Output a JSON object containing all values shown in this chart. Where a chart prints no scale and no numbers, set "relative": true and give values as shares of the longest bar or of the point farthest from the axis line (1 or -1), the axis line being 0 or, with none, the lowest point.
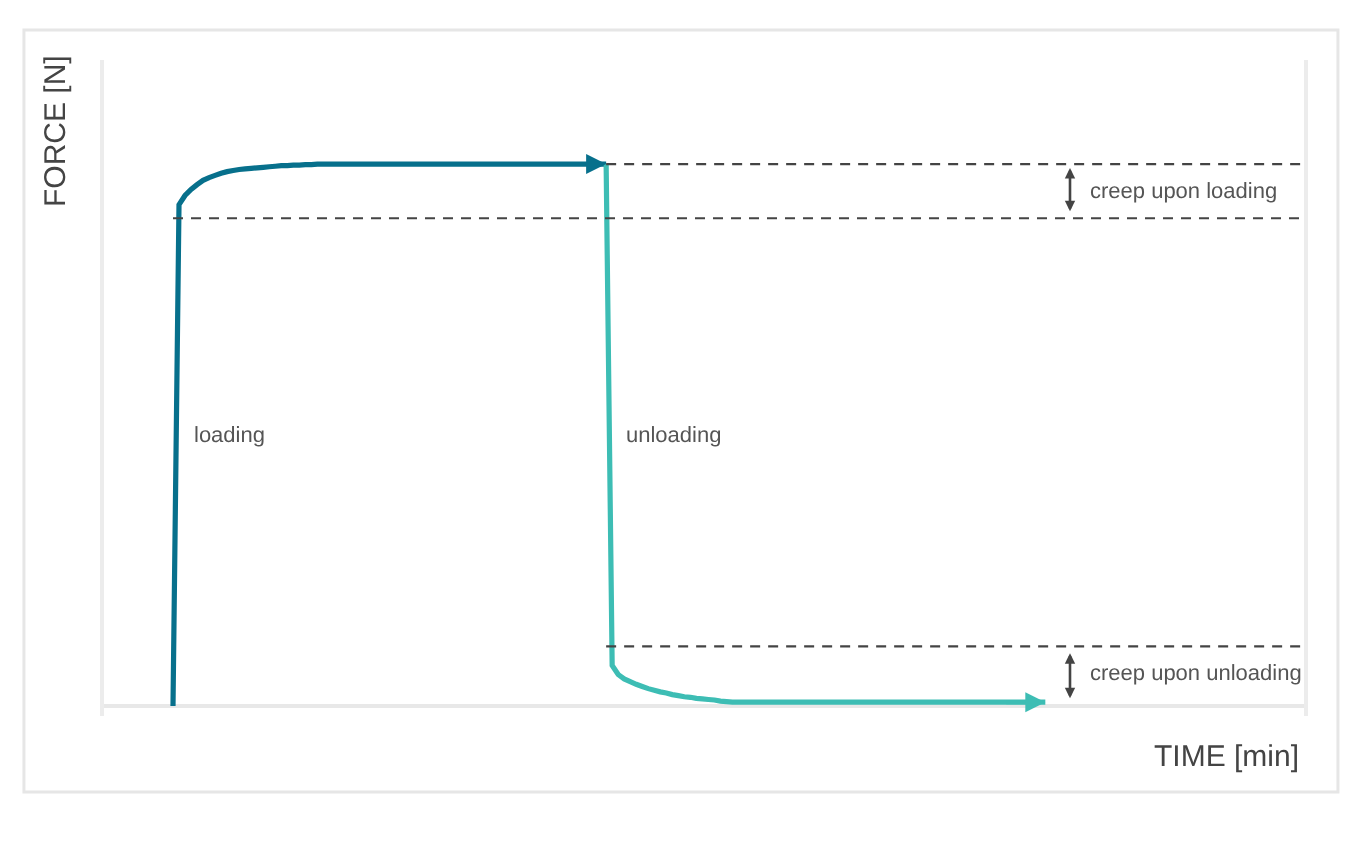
{
  "chart_data": {
    "type": "line",
    "relative": true,
    "xlabel": "TIME [min]",
    "ylabel": "FORCE [N]",
    "legend": false,
    "marker": "none",
    "categories": [
      null,
      null,
      null,
      null,
      null,
      null,
      null,
      null,
      null,
      null,
      null,
      null,
      null,
      null,
      null,
      null,
      null,
      null,
      null,
      null,
      null,
      null,
      null,
      null,
      null,
      null,
      null,
      null,
      null,
      null,
      null,
      null,
      null,
      null,
      null,
      null,
      null,
      null,
      null,
      null,
      null,
      null,
      null,
      null,
      null,
      null,
      null,
      null,
      null,
      null,
      null,
      null,
      null,
      null,
      null,
      null,
      null,
      null,
      null,
      null,
      null,
      null,
      null,
      null,
      null,
      null,
      null,
      null,
      null,
      null,
      null,
      null,
      null,
      null,
      null,
      null,
      null,
      null,
      null,
      null,
      null,
      null,
      null,
      null,
      null,
      null,
      null,
      null,
      null,
      null,
      null,
      null,
      null,
      null,
      null,
      null,
      null,
      null,
      null,
      null,
      null,
      null,
      null,
      null,
      null,
      null,
      null,
      null,
      null,
      null,
      null,
      null,
      null,
      null,
      null,
      null,
      null,
      null,
      null,
      null,
      null,
      null,
      null,
      null,
      null,
      null,
      null,
      null,
      null,
      null,
      null,
      null,
      null,
      null,
      null,
      null,
      null,
      null,
      null,
      null,
      null,
      null,
      null,
      null,
      null,
      null,
      null,
      null,
      null,
      null,
      null,
      null,
      null,
      null,
      null,
      null,
      null,
      null,
      null,
      null,
      null,
      null,
      null,
      null,
      null,
      null,
      null,
      null,
      null,
      null,
      null,
      null,
      null,
      null,
      null,
      null,
      null,
      null,
      null,
      null,
      null,
      null,
      null,
      null,
      null,
      null,
      null,
      null,
      null
    ],
    "series": [
      {
        "name": "loading",
        "color": "#07708c",
        "values": [
          0,
          0.925,
          0.942,
          0.953,
          0.962,
          0.97,
          0.975,
          0.979,
          0.983,
          0.986,
          0.988,
          0.99,
          0.991,
          0.992,
          0.993,
          0.994,
          0.995,
          0.996,
          0.997,
          0.997,
          0.998,
          0.998,
          0.999,
          0.999,
          1,
          1,
          1,
          1,
          1,
          1,
          1,
          1,
          1,
          1,
          1,
          1,
          1,
          1,
          1,
          1,
          1,
          1,
          1,
          1,
          1,
          1,
          1,
          1,
          1,
          1,
          1,
          1,
          1,
          1,
          1,
          1,
          1,
          1,
          1,
          1,
          1,
          1,
          1,
          1,
          1,
          1,
          1,
          1,
          1,
          1,
          1,
          1,
          1,
          null,
          null,
          null,
          null,
          null,
          null,
          null,
          null,
          null,
          null,
          null,
          null,
          null,
          null,
          null,
          null,
          null,
          null,
          null,
          null,
          null,
          null,
          null,
          null,
          null,
          null,
          null,
          null,
          null,
          null,
          null,
          null,
          null,
          null,
          null,
          null,
          null,
          null,
          null,
          null,
          null,
          null,
          null,
          null,
          null,
          null,
          null,
          null,
          null,
          null,
          null,
          null,
          null,
          null,
          null,
          null,
          null,
          null,
          null,
          null,
          null,
          null,
          null,
          null,
          null,
          null,
          null,
          null,
          null,
          null,
          null,
          null,
          null,
          null,
          null,
          null,
          null,
          null,
          null,
          null,
          null,
          null,
          null,
          null,
          null,
          null,
          null,
          null,
          null,
          null,
          null,
          null,
          null,
          null,
          null,
          null,
          null,
          null,
          null,
          null,
          null,
          null,
          null,
          null,
          null,
          null,
          null,
          null,
          null,
          null,
          null,
          null,
          null,
          null,
          null,
          null
        ]
      },
      {
        "name": "unloading",
        "color": "#3dbdb4",
        "values": [
          null,
          null,
          null,
          null,
          null,
          null,
          null,
          null,
          null,
          null,
          null,
          null,
          null,
          null,
          null,
          null,
          null,
          null,
          null,
          null,
          null,
          null,
          null,
          null,
          null,
          null,
          null,
          null,
          null,
          null,
          null,
          null,
          null,
          null,
          null,
          null,
          null,
          null,
          null,
          null,
          null,
          null,
          null,
          null,
          null,
          null,
          null,
          null,
          null,
          null,
          null,
          null,
          null,
          null,
          null,
          null,
          null,
          null,
          null,
          null,
          null,
          null,
          null,
          null,
          null,
          null,
          null,
          null,
          null,
          null,
          null,
          null,
          1,
          0.075,
          0.058,
          0.05,
          0.045,
          0.04,
          0.036,
          0.032,
          0.029,
          0.026,
          0.024,
          0.021,
          0.019,
          0.017,
          0.016,
          0.014,
          0.013,
          0.012,
          0.011,
          0.009,
          0.008,
          0.007,
          0.007,
          0.007,
          0.007,
          0.007,
          0.007,
          0.007,
          0.007,
          0.007,
          0.007,
          0.007,
          0.007,
          0.007,
          0.007,
          0.007,
          0.007,
          0.007,
          0.007,
          0.007,
          0.007,
          0.007,
          0.007,
          0.007,
          0.007,
          0.007,
          0.007,
          0.007,
          0.007,
          0.007,
          0.007,
          0.007,
          0.007,
          0.007,
          0.007,
          0.007,
          0.007,
          0.007,
          0.007,
          0.007,
          0.007,
          0.007,
          0.007,
          0.007,
          0.007,
          0.007,
          0.007,
          0.007,
          0.007,
          0.007,
          0.007,
          0.007,
          0.007,
          0.007,
          null,
          null,
          null,
          null,
          null,
          null,
          null,
          null,
          null,
          null,
          null,
          null,
          null,
          null,
          null,
          null,
          null,
          null,
          null,
          null,
          null,
          null,
          null,
          null,
          null,
          null,
          null,
          null,
          null,
          null,
          null,
          null,
          null,
          null,
          null,
          null,
          null,
          null,
          null,
          null,
          null,
          null,
          null
        ]
      },
      {
        "type": "line",
        "line_style": "dashed",
        "color": "#444444",
        "values": [
          null,
          null,
          null,
          null,
          null,
          null,
          null,
          null,
          null,
          null,
          null,
          null,
          null,
          null,
          null,
          null,
          null,
          null,
          null,
          null,
          null,
          null,
          null,
          null,
          null,
          null,
          null,
          null,
          null,
          null,
          null,
          null,
          null,
          null,
          null,
          null,
          null,
          null,
          null,
          null,
          null,
          null,
          null,
          null,
          null,
          null,
          null,
          null,
          null,
          null,
          null,
          null,
          null,
          null,
          null,
          null,
          null,
          null,
          null,
          null,
          null,
          null,
          null,
          null,
          null,
          null,
          null,
          null,
          null,
          null,
          null,
          null,
          1,
          1,
          1,
          1,
          1,
          1,
          1,
          1,
          1,
          1,
          1,
          1,
          1,
          1,
          1,
          1,
          1,
          1,
          1,
          1,
          1,
          1,
          1,
          1,
          1,
          1,
          1,
          1,
          1,
          1,
          1,
          1,
          1,
          1,
          1,
          1,
          1,
          1,
          1,
          1,
          1,
          1,
          1,
          1,
          1,
          1,
          1,
          1,
          1,
          1,
          1,
          1,
          1,
          1,
          1,
          1,
          1,
          1,
          1,
          1,
          1,
          1,
          1,
          1,
          1,
          1,
          1,
          1,
          1,
          1,
          1,
          1,
          1,
          1,
          1,
          1,
          1,
          1,
          1,
          1,
          1,
          1,
          1,
          1,
          1,
          1,
          1,
          1,
          1,
          1,
          1,
          1,
          1,
          1,
          1,
          1,
          1,
          1,
          1,
          1,
          1,
          1,
          1,
          1,
          1,
          1,
          1,
          1,
          1,
          1,
          1,
          1,
          1,
          1,
          1,
          1,
          1
        ]
      },
      {
        "type": "line",
        "line_style": "dashed",
        "color": "#444444",
        "values": [
          0.9,
          0.9,
          0.9,
          0.9,
          0.9,
          0.9,
          0.9,
          0.9,
          0.9,
          0.9,
          0.9,
          0.9,
          0.9,
          0.9,
          0.9,
          0.9,
          0.9,
          0.9,
          0.9,
          0.9,
          0.9,
          0.9,
          0.9,
          0.9,
          0.9,
          0.9,
          0.9,
          0.9,
          0.9,
          0.9,
          0.9,
          0.9,
          0.9,
          0.9,
          0.9,
          0.9,
          0.9,
          0.9,
          0.9,
          0.9,
          0.9,
          0.9,
          0.9,
          0.9,
          0.9,
          0.9,
          0.9,
          0.9,
          0.9,
          0.9,
          0.9,
          0.9,
          0.9,
          0.9,
          0.9,
          0.9,
          0.9,
          0.9,
          0.9,
          0.9,
          0.9,
          0.9,
          0.9,
          0.9,
          0.9,
          0.9,
          0.9,
          0.9,
          0.9,
          0.9,
          0.9,
          0.9,
          0.9,
          0.9,
          0.9,
          0.9,
          0.9,
          0.9,
          0.9,
          0.9,
          0.9,
          0.9,
          0.9,
          0.9,
          0.9,
          0.9,
          0.9,
          0.9,
          0.9,
          0.9,
          0.9,
          0.9,
          0.9,
          0.9,
          0.9,
          0.9,
          0.9,
          0.9,
          0.9,
          0.9,
          0.9,
          0.9,
          0.9,
          0.9,
          0.9,
          0.9,
          0.9,
          0.9,
          0.9,
          0.9,
          0.9,
          0.9,
          0.9,
          0.9,
          0.9,
          0.9,
          0.9,
          0.9,
          0.9,
          0.9,
          0.9,
          0.9,
          0.9,
          0.9,
          0.9,
          0.9,
          0.9,
          0.9,
          0.9,
          0.9,
          0.9,
          0.9,
          0.9,
          0.9,
          0.9,
          0.9,
          0.9,
          0.9,
          0.9,
          0.9,
          0.9,
          0.9,
          0.9,
          0.9,
          0.9,
          0.9,
          0.9,
          0.9,
          0.9,
          0.9,
          0.9,
          0.9,
          0.9,
          0.9,
          0.9,
          0.9,
          0.9,
          0.9,
          0.9,
          0.9,
          0.9,
          0.9,
          0.9,
          0.9,
          0.9,
          0.9,
          0.9,
          0.9,
          0.9,
          0.9,
          0.9,
          0.9,
          0.9,
          0.9,
          0.9,
          0.9,
          0.9,
          0.9,
          0.9,
          0.9,
          0.9,
          0.9,
          0.9,
          0.9,
          0.9,
          0.9,
          0.9,
          0.9,
          0.9
        ]
      },
      {
        "type": "line",
        "line_style": "dashed",
        "color": "#444444",
        "values": [
          null,
          null,
          null,
          null,
          null,
          null,
          null,
          null,
          null,
          null,
          null,
          null,
          null,
          null,
          null,
          null,
          null,
          null,
          null,
          null,
          null,
          null,
          null,
          null,
          null,
          null,
          null,
          null,
          null,
          null,
          null,
          null,
          null,
          null,
          null,
          null,
          null,
          null,
          null,
          null,
          null,
          null,
          null,
          null,
          null,
          null,
          null,
          null,
          null,
          null,
          null,
          null,
          null,
          null,
          null,
          null,
          null,
          null,
          null,
          null,
          null,
          null,
          null,
          null,
          null,
          null,
          null,
          null,
          null,
          null,
          null,
          null,
          0.11,
          0.11,
          0.11,
          0.11,
          0.11,
          0.11,
          0.11,
          0.11,
          0.11,
          0.11,
          0.11,
          0.11,
          0.11,
          0.11,
          0.11,
          0.11,
          0.11,
          0.11,
          0.11,
          0.11,
          0.11,
          0.11,
          0.11,
          0.11,
          0.11,
          0.11,
          0.11,
          0.11,
          0.11,
          0.11,
          0.11,
          0.11,
          0.11,
          0.11,
          0.11,
          0.11,
          0.11,
          0.11,
          0.11,
          0.11,
          0.11,
          0.11,
          0.11,
          0.11,
          0.11,
          0.11,
          0.11,
          0.11,
          0.11,
          0.11,
          0.11,
          0.11,
          0.11,
          0.11,
          0.11,
          0.11,
          0.11,
          0.11,
          0.11,
          0.11,
          0.11,
          0.11,
          0.11,
          0.11,
          0.11,
          0.11,
          0.11,
          0.11,
          0.11,
          0.11,
          0.11,
          0.11,
          0.11,
          0.11,
          0.11,
          0.11,
          0.11,
          0.11,
          0.11,
          0.11,
          0.11,
          0.11,
          0.11,
          0.11,
          0.11,
          0.11,
          0.11,
          0.11,
          0.11,
          0.11,
          0.11,
          0.11,
          0.11,
          0.11,
          0.11,
          0.11,
          0.11,
          0.11,
          0.11,
          0.11,
          0.11,
          0.11,
          0.11,
          0.11,
          0.11,
          0.11,
          0.11,
          0.11,
          0.11,
          0.11,
          0.11,
          0.11,
          0.11,
          0.11,
          0.11,
          0.11,
          0.11
        ]
      }
    ],
    "annotations": [
      "creep upon loading",
      "creep upon unloading"
    ]
  }
}
